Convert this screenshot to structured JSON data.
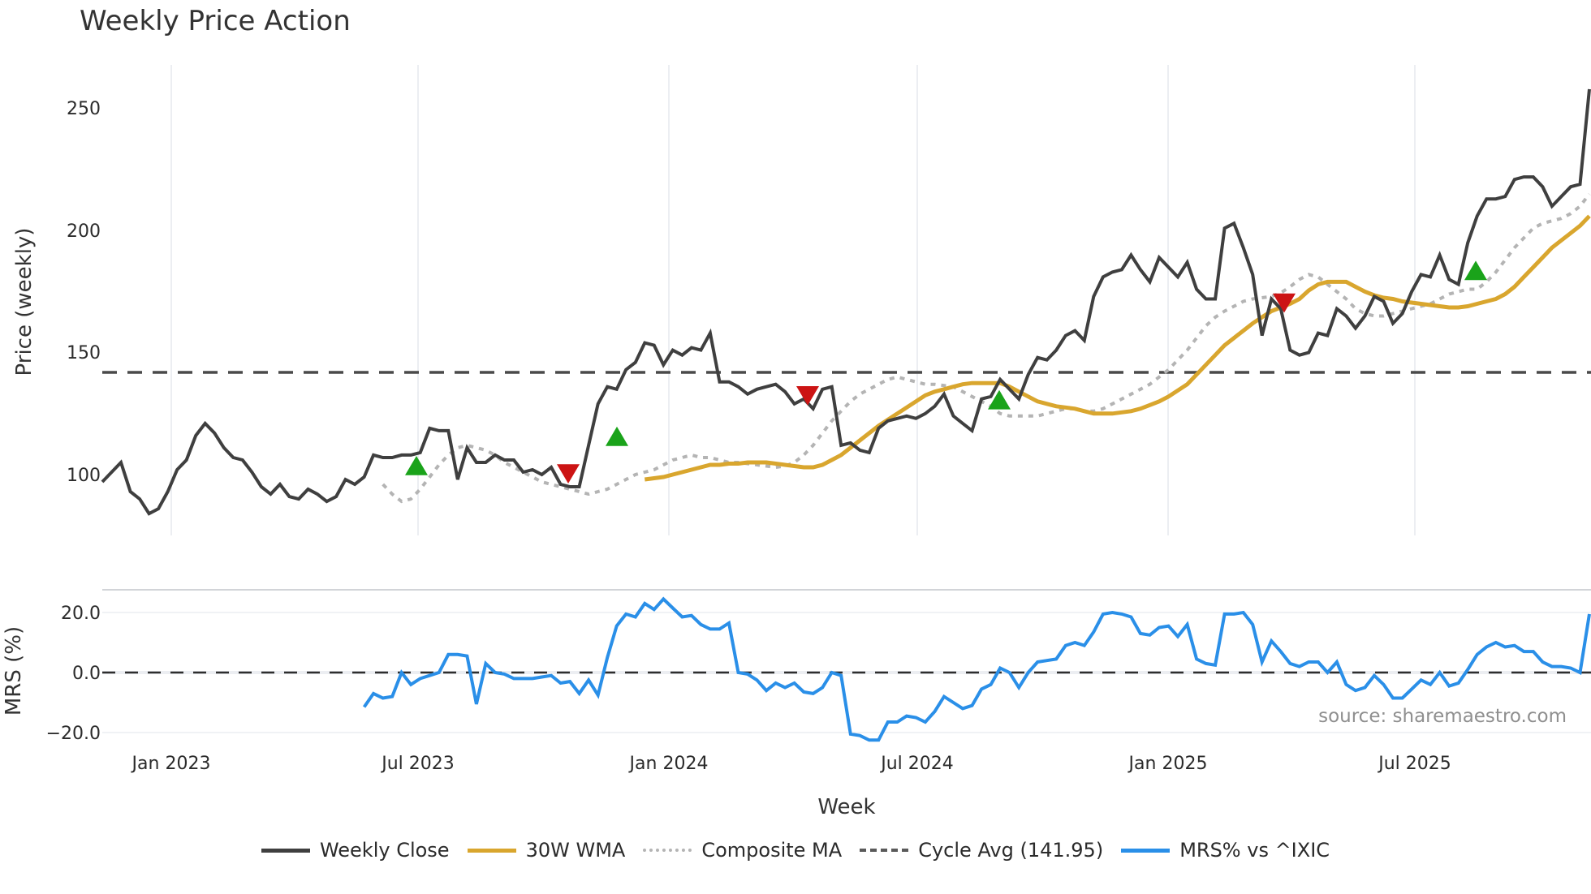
{
  "title": "Weekly Price Action",
  "source_text": "source: sharemaestro.com",
  "legend": [
    {
      "label": "Weekly Close",
      "color": "#3f3f3f",
      "style": "solid"
    },
    {
      "label": "30W WMA",
      "color": "#d9a62e",
      "style": "solid"
    },
    {
      "label": "Composite MA",
      "color": "#b4b4b4",
      "style": "dotted"
    },
    {
      "label": "Cycle Avg (141.95)",
      "color": "#4a4a4a",
      "style": "dashed"
    },
    {
      "label": "MRS% vs ^IXIC",
      "color": "#2a8fe8",
      "style": "solid"
    }
  ],
  "chart_data": [
    {
      "type": "line",
      "title": "Weekly Price Action",
      "xlabel": "Week",
      "ylabel": "Price (weekly)",
      "ylim": [
        73,
        262
      ],
      "yticks": [
        100,
        150,
        200,
        250
      ],
      "xticks": [
        "Jan 2023",
        "Jul 2023",
        "Jan 2024",
        "Jul 2024",
        "Jan 2025",
        "Jul 2025"
      ],
      "grid": "vertical",
      "x_start": "2022-10 (approx, weekly)",
      "series": [
        {
          "name": "Weekly Close",
          "color": "#3f3f3f",
          "values": [
            97,
            101,
            105,
            93,
            90,
            84,
            86,
            93,
            102,
            106,
            116,
            121,
            117,
            111,
            107,
            106,
            101,
            95,
            92,
            96,
            91,
            90,
            94,
            92,
            89,
            91,
            98,
            96,
            99,
            108,
            107,
            107,
            108,
            108,
            109,
            119,
            118,
            118,
            98,
            111,
            105,
            105,
            108,
            106,
            106,
            101,
            102,
            100,
            103,
            96,
            95,
            95,
            112,
            129,
            136,
            135,
            143,
            146,
            154,
            153,
            145,
            151,
            149,
            152,
            151,
            158,
            138,
            138,
            136,
            133,
            135,
            136,
            137,
            134,
            129,
            131,
            127,
            135,
            136,
            112,
            113,
            110,
            109,
            119,
            122,
            123,
            124,
            123,
            125,
            128,
            133,
            124,
            121,
            118,
            131,
            132,
            139,
            135,
            131,
            141,
            148,
            147,
            151,
            157,
            159,
            155,
            173,
            181,
            183,
            184,
            190,
            184,
            179,
            189,
            185,
            181,
            187,
            176,
            172,
            172,
            201,
            203,
            193,
            182,
            157,
            172,
            168,
            151,
            149,
            150,
            158,
            157,
            168,
            165,
            160,
            165,
            173,
            171,
            162,
            166,
            175,
            182,
            181,
            190,
            180,
            178,
            195,
            206,
            213,
            213,
            214,
            221,
            222,
            222,
            218,
            210,
            214,
            218,
            219,
            258
          ]
        },
        {
          "name": "30W WMA",
          "color": "#d9a62e",
          "start_index": 28,
          "values": [
            98,
            98.5,
            99,
            100,
            101,
            102,
            103,
            104,
            104,
            104.5,
            104.5,
            105,
            105,
            105,
            104.5,
            104,
            103.5,
            103,
            103,
            104,
            106,
            108,
            111,
            114,
            117,
            120,
            122.5,
            125,
            127.5,
            130,
            132.5,
            134,
            135,
            136,
            137,
            137.5,
            137.5,
            137.5,
            137.5,
            136,
            134,
            132,
            130,
            129,
            128,
            127.5,
            127,
            126,
            125,
            125,
            125,
            125.5,
            126,
            127,
            128.5,
            130,
            132,
            134.5,
            137,
            141,
            145,
            149,
            153,
            156,
            159,
            162,
            164.5,
            167,
            168.5,
            170,
            172,
            175.5,
            178,
            179,
            179,
            179,
            177,
            175,
            173.5,
            172.5,
            172,
            171,
            170.5,
            170,
            169.5,
            169,
            168.5,
            168.5,
            169,
            170,
            171,
            172,
            174,
            177,
            181,
            185,
            189,
            193,
            196,
            199,
            202,
            206
          ]
        },
        {
          "name": "Composite MA",
          "color": "#b4b4b4",
          "style": "dotted",
          "start_index": 5,
          "values": [
            96,
            92,
            89,
            90,
            94,
            99,
            104,
            108,
            111,
            112,
            111,
            110,
            108,
            105,
            103,
            101,
            99,
            97,
            96,
            95,
            94,
            93,
            92,
            93,
            94,
            96,
            98,
            100,
            101,
            102,
            104,
            106,
            107,
            108,
            107,
            107,
            106,
            105,
            105,
            104.5,
            104,
            103.5,
            103,
            103.5,
            105,
            108,
            112,
            117,
            122,
            126,
            130,
            133,
            135,
            137,
            139,
            140,
            139,
            138,
            137,
            137,
            136.5,
            136,
            134,
            132,
            130,
            128,
            125,
            124,
            124,
            124,
            124,
            125,
            126,
            127,
            127,
            126,
            126,
            127,
            129,
            131,
            133,
            135,
            137,
            140,
            143,
            147,
            151,
            156,
            161,
            164.5,
            167,
            169,
            171,
            172,
            172.5,
            173,
            174.5,
            177,
            180,
            182,
            181,
            178,
            175,
            172,
            168,
            166,
            165,
            165,
            166,
            167,
            168,
            169,
            170,
            172,
            174,
            175,
            176,
            176,
            179,
            183,
            188,
            193,
            197,
            201,
            203,
            204,
            205,
            207,
            210,
            215
          ]
        },
        {
          "name": "Cycle Avg (141.95)",
          "color": "#4a4a4a",
          "style": "dashed",
          "constant": 141.95
        }
      ],
      "markers": [
        {
          "type": "buy",
          "shape": "triangle-up",
          "color": "#1aa31a",
          "approx_date": "Jul 2023",
          "price": 103
        },
        {
          "type": "sell",
          "shape": "triangle-down",
          "color": "#cc1414",
          "approx_date": "Oct 2023",
          "price": 101
        },
        {
          "type": "buy",
          "shape": "triangle-up",
          "color": "#1aa31a",
          "approx_date": "Nov 2023",
          "price": 115
        },
        {
          "type": "sell",
          "shape": "triangle-down",
          "color": "#cc1414",
          "approx_date": "Apr 2024",
          "price": 133
        },
        {
          "type": "buy",
          "shape": "triangle-up",
          "color": "#1aa31a",
          "approx_date": "Aug 2024",
          "price": 130
        },
        {
          "type": "sell",
          "shape": "triangle-down",
          "color": "#cc1414",
          "approx_date": "Mar 2025",
          "price": 171
        },
        {
          "type": "buy",
          "shape": "triangle-up",
          "color": "#1aa31a",
          "approx_date": "Aug 2025",
          "price": 183
        }
      ]
    },
    {
      "type": "line",
      "ylabel": "MRS (%)",
      "xlabel": "Week",
      "ylim": [
        -25,
        28
      ],
      "yticks": [
        -20.0,
        0.0,
        20.0
      ],
      "reference_line": {
        "value": 0.0,
        "style": "dashed",
        "color": "#333333"
      },
      "series": [
        {
          "name": "MRS% vs ^IXIC",
          "color": "#2a8fe8",
          "start_index": 32,
          "values": [
            -11.5,
            -7,
            -8.5,
            -8,
            0,
            -4,
            -2,
            -1,
            0,
            6,
            6,
            5.5,
            -10.5,
            3,
            0,
            -0.5,
            -2,
            -2,
            -2,
            -1.5,
            -1,
            -3.5,
            -3,
            -7,
            -2.5,
            -7.5,
            5,
            15.5,
            19.5,
            18.5,
            23,
            21,
            24.5,
            21.5,
            18.5,
            19,
            16,
            14.5,
            14.5,
            16.5,
            0,
            -0.5,
            -2.5,
            -6,
            -3.5,
            -5,
            -3.5,
            -6.5,
            -7,
            -5,
            0,
            -1,
            -20.5,
            -21,
            -22.5,
            -22.5,
            -16.5,
            -16.5,
            -14.5,
            -15,
            -16.5,
            -13,
            -8,
            -10,
            -12,
            -11,
            -5.5,
            -4,
            1.5,
            0,
            -5,
            0,
            3.5,
            4,
            4.5,
            9,
            10,
            9,
            13.5,
            19.5,
            20,
            19.5,
            18.5,
            13,
            12.5,
            15,
            15.5,
            12,
            16,
            4.5,
            3,
            2.5,
            19.5,
            19.5,
            20,
            16,
            3.5,
            10.5,
            7,
            3,
            2,
            3.5,
            3.5,
            0,
            3.5,
            -4,
            -6,
            -5,
            -1,
            -4,
            -8.5,
            -8.5,
            -5.5,
            -2.5,
            -4,
            0,
            -4.5,
            -3.5,
            1,
            6,
            8.5,
            10,
            8.5,
            9,
            7,
            7,
            3.5,
            2,
            2,
            1.5,
            0,
            19.5
          ]
        }
      ]
    }
  ],
  "axes": {
    "price_ylabel": "Price (weekly)",
    "mrs_ylabel": "MRS (%)",
    "xlabel": "Week",
    "price_yticks": [
      "250",
      "200",
      "150",
      "100"
    ],
    "mrs_yticks": [
      "20.0",
      "0.0",
      "−20.0"
    ],
    "xticks": [
      "Jan 2023",
      "Jul 2023",
      "Jan 2024",
      "Jul 2024",
      "Jan 2025",
      "Jul 2025"
    ]
  }
}
